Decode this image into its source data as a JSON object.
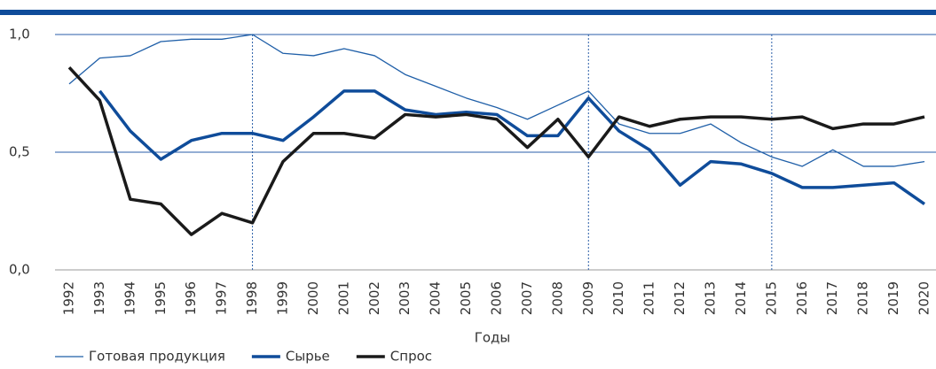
{
  "chart_data": {
    "type": "line",
    "x": [
      1992,
      1993,
      1994,
      1995,
      1996,
      1997,
      1998,
      1999,
      2000,
      2001,
      2002,
      2003,
      2004,
      2005,
      2006,
      2007,
      2008,
      2009,
      2010,
      2011,
      2012,
      2013,
      2014,
      2015,
      2016,
      2017,
      2018,
      2019,
      2020
    ],
    "xlim": [
      1992,
      2020
    ],
    "x_label": "Годы",
    "ylim": [
      0,
      1
    ],
    "yticks": [
      {
        "value": 0,
        "label": "0,0"
      },
      {
        "value": 0.5,
        "label": "0,5"
      },
      {
        "value": 1,
        "label": "1,0"
      }
    ],
    "grid": true,
    "vlines": [
      1998,
      2009,
      2015
    ],
    "legend": "bottom",
    "series": [
      {
        "name": "Готовая продукция",
        "color": "#1f5fa8",
        "width": 1.3,
        "values": [
          0.79,
          0.9,
          0.91,
          0.97,
          0.98,
          0.98,
          1.0,
          0.92,
          0.91,
          0.94,
          0.91,
          0.83,
          0.78,
          0.73,
          0.69,
          0.64,
          0.7,
          0.76,
          0.62,
          0.58,
          0.58,
          0.62,
          0.54,
          0.48,
          0.44,
          0.51,
          0.44,
          0.44,
          0.46
        ]
      },
      {
        "name": "Сырье",
        "color": "#0f4c9a",
        "width": 3.5,
        "values": [
          null,
          0.76,
          0.59,
          0.47,
          0.55,
          0.58,
          0.58,
          0.55,
          0.65,
          0.76,
          0.76,
          0.68,
          0.66,
          0.67,
          0.66,
          0.57,
          0.57,
          0.73,
          0.59,
          0.51,
          0.36,
          0.46,
          0.45,
          0.41,
          0.35,
          0.35,
          0.36,
          0.37,
          0.28
        ]
      },
      {
        "name": "Спрос",
        "color": "#1a1a1a",
        "width": 3.5,
        "values": [
          0.86,
          0.72,
          0.3,
          0.28,
          0.15,
          0.24,
          0.2,
          0.46,
          0.58,
          0.58,
          0.56,
          0.66,
          0.65,
          0.66,
          0.64,
          0.52,
          0.64,
          0.48,
          0.65,
          0.61,
          0.64,
          0.65,
          0.65,
          0.64,
          0.65,
          0.6,
          0.62,
          0.62,
          0.65
        ]
      }
    ]
  }
}
